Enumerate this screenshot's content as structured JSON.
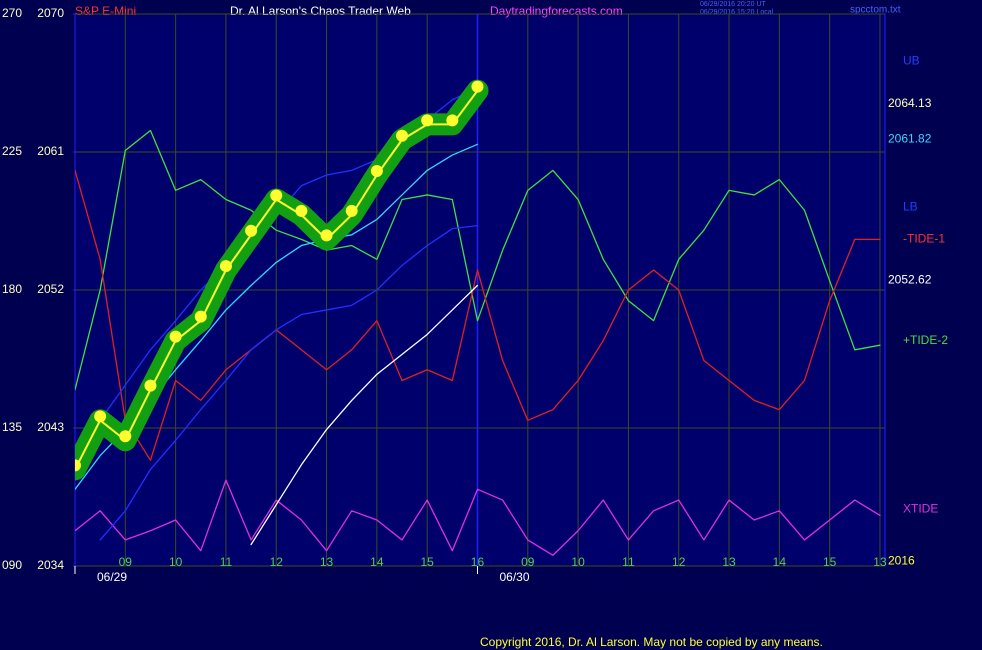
{
  "chart_data": {
    "type": "line",
    "title": "Dr. Al Larson's Chaos Trader Web",
    "instrument": "S&P E-Mini",
    "site": "Daytradingforecasts.com",
    "timestamps": [
      "06/29/2016 20:20 UT",
      "06/29/2016 15:20 Local"
    ],
    "file_name": "spcctom.txt",
    "copyright": "Copyright 2016, Dr. Al Larson. May not be copied by any means.",
    "grid": true,
    "xlim": [
      0,
      16.1
    ],
    "xticks": [
      {
        "value": 1,
        "label": "09"
      },
      {
        "value": 2,
        "label": "10"
      },
      {
        "value": 3,
        "label": "11"
      },
      {
        "value": 4,
        "label": "12"
      },
      {
        "value": 5,
        "label": "13"
      },
      {
        "value": 6,
        "label": "14"
      },
      {
        "value": 7,
        "label": "15"
      },
      {
        "value": 8,
        "label": "16"
      },
      {
        "value": 9,
        "label": "09"
      },
      {
        "value": 10,
        "label": "10"
      },
      {
        "value": 11,
        "label": "11"
      },
      {
        "value": 12,
        "label": "12"
      },
      {
        "value": 13,
        "label": "13"
      },
      {
        "value": 14,
        "label": "14"
      },
      {
        "value": 15,
        "label": "15"
      },
      {
        "value": 16,
        "label": "13"
      }
    ],
    "date_ticks": [
      {
        "value": 0,
        "label": "06/29"
      },
      {
        "value": 8,
        "label": "06/30"
      }
    ],
    "ylim": [
      2034,
      2070
    ],
    "yticks": [
      2034,
      2043,
      2052,
      2061,
      2070
    ],
    "y2lim": [
      90,
      270
    ],
    "y2ticks": [
      {
        "value": 90,
        "label": "090"
      },
      135,
      180,
      225,
      270
    ],
    "x": [
      0,
      0.5,
      1,
      1.5,
      2,
      2.5,
      3,
      3.5,
      4,
      4.5,
      5,
      5.5,
      6,
      6.5,
      7,
      7.5,
      8,
      8.5,
      9,
      9.5,
      10,
      10.5,
      11,
      11.5,
      12,
      12.5,
      13,
      13.5,
      14,
      14.5,
      15,
      15.5,
      16
    ],
    "series": [
      {
        "color": "#ffff30",
        "halo": "#12a012",
        "markers": true,
        "values": [
          2040.3,
          2043.5,
          2042.2,
          2045.5,
          2048.7,
          2050.0,
          2053.3,
          2055.6,
          2057.9,
          2056.9,
          2055.3,
          2056.9,
          2059.5,
          2061.8,
          2062.8,
          2062.8,
          2065.0,
          null,
          null,
          null,
          null,
          null,
          null,
          null,
          null,
          null,
          null,
          null,
          null,
          null,
          null,
          null,
          null
        ]
      },
      {
        "color": "#30d8ff",
        "values": [
          2039.0,
          2041.2,
          2042.9,
          2044.8,
          2046.8,
          2048.7,
          2050.7,
          2052.3,
          2053.8,
          2054.9,
          2055.3,
          2055.6,
          2056.6,
          2058.2,
          2059.8,
          2060.8,
          2061.5,
          null,
          null,
          null,
          null,
          null,
          null,
          null,
          null,
          null,
          null,
          null,
          null,
          null,
          null,
          null,
          null
        ]
      },
      {
        "color": "#ffffff",
        "values": [
          null,
          null,
          null,
          null,
          null,
          null,
          null,
          2035.4,
          2038.0,
          2040.6,
          2042.9,
          2044.8,
          2046.5,
          2047.8,
          2049.1,
          2050.7,
          2052.3,
          null,
          null,
          null,
          null,
          null,
          null,
          null,
          null,
          null,
          null,
          null,
          null,
          null,
          null,
          null,
          null
        ]
      },
      {
        "color": "#2030ff",
        "values": [
          2041.6,
          2043.5,
          2045.8,
          2048.1,
          2050.0,
          2052.0,
          2053.6,
          2054.9,
          2056.9,
          2058.8,
          2059.5,
          2059.8,
          2060.5,
          2061.8,
          2063.1,
          2064.4,
          2065.2,
          null,
          null,
          null,
          null,
          null,
          null,
          null,
          null,
          null,
          null,
          null,
          null,
          null,
          null,
          null,
          null
        ]
      },
      {
        "color": "#2030ff",
        "values": [
          null,
          2035.7,
          2037.6,
          2040.3,
          2042.2,
          2044.2,
          2046.1,
          2048.1,
          2049.4,
          2050.4,
          2050.7,
          2051.0,
          2052.0,
          2053.6,
          2054.9,
          2056.0,
          2056.2,
          null,
          null,
          null,
          null,
          null,
          null,
          null,
          null,
          null,
          null,
          null,
          null,
          null,
          null,
          null,
          null
        ]
      },
      {
        "color": "#e02020",
        "values": [
          2059.8,
          2054.0,
          2043.5,
          2040.9,
          2046.1,
          2044.8,
          2046.8,
          2048.1,
          2049.4,
          2048.1,
          2046.8,
          2048.1,
          2050.0,
          2046.1,
          2046.8,
          2046.1,
          2053.3,
          2047.4,
          2043.5,
          2044.2,
          2046.1,
          2048.7,
          2052.0,
          2053.3,
          2052.0,
          2047.4,
          2046.1,
          2044.8,
          2044.2,
          2046.1,
          2051.3,
          2055.3,
          2055.3
        ]
      },
      {
        "color": "#40e040",
        "values": [
          2045.5,
          2052.0,
          2061.1,
          2062.4,
          2058.5,
          2059.2,
          2057.9,
          2057.2,
          2055.9,
          2055.3,
          2054.6,
          2054.9,
          2054.0,
          2057.9,
          2058.2,
          2057.9,
          2050.0,
          2054.6,
          2058.5,
          2059.8,
          2057.9,
          2054.0,
          2051.3,
          2050.0,
          2054.0,
          2055.9,
          2058.5,
          2058.2,
          2059.2,
          2057.2,
          2052.6,
          2048.1,
          2048.4
        ]
      },
      {
        "color": "#e030e0",
        "values": [
          2036.3,
          2037.6,
          2035.7,
          2036.3,
          2037.0,
          2035.0,
          2039.6,
          2035.7,
          2038.3,
          2037.0,
          2035.0,
          2037.6,
          2037.0,
          2035.7,
          2038.3,
          2035.0,
          2039.0,
          2038.3,
          2035.7,
          2034.7,
          2036.3,
          2038.3,
          2035.7,
          2037.6,
          2038.3,
          2035.7,
          2038.3,
          2037.0,
          2037.6,
          2035.7,
          2037.0,
          2038.3,
          2037.3
        ]
      }
    ],
    "annotations": [
      {
        "text": "UB",
        "y": 2066.9,
        "color": "#2040ff"
      },
      {
        "text": "2064.13",
        "y": 2064.13,
        "color": "#ffffc0"
      },
      {
        "text": "2061.82",
        "y": 2061.82,
        "color": "#30d8ff"
      },
      {
        "text": "LB",
        "y": 2057.4,
        "color": "#2040ff"
      },
      {
        "text": "-TIDE-1",
        "y": 2055.3,
        "color": "#ff3030"
      },
      {
        "text": "2052.62",
        "y": 2052.62,
        "color": "#ffffff"
      },
      {
        "text": "+TIDE-2",
        "y": 2048.7,
        "color": "#40e040"
      },
      {
        "text": "XTIDE",
        "y": 2037.7,
        "color": "#e030e0"
      },
      {
        "text": "2016",
        "y": 2034.3,
        "color": "#ffff30"
      }
    ]
  }
}
